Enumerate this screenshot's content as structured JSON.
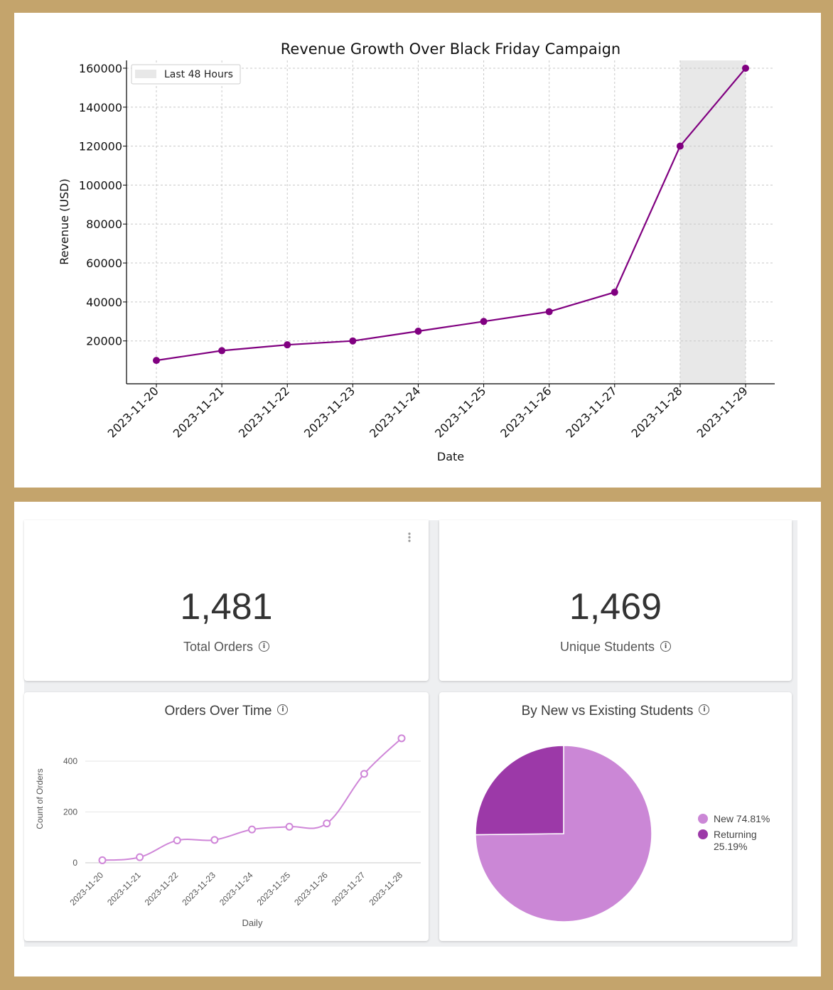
{
  "chart_data": [
    {
      "type": "line",
      "title": "Revenue Growth Over Black Friday Campaign",
      "xlabel": "Date",
      "ylabel": "Revenue (USD)",
      "categories": [
        "2023-11-20",
        "2023-11-21",
        "2023-11-22",
        "2023-11-23",
        "2023-11-24",
        "2023-11-25",
        "2023-11-26",
        "2023-11-27",
        "2023-11-28",
        "2023-11-29"
      ],
      "values": [
        10000,
        15000,
        18000,
        20000,
        25000,
        30000,
        35000,
        45000,
        120000,
        160000
      ],
      "ylim": [
        -2000,
        164000
      ],
      "yticks": [
        20000,
        40000,
        60000,
        80000,
        100000,
        120000,
        140000,
        160000
      ],
      "grid": true,
      "legend": "top-left",
      "shaded_region": {
        "label": "Last 48 Hours",
        "from": "2023-11-28",
        "to": "2023-11-29"
      },
      "color": "#800080",
      "shade_color": "#e8e8e8"
    },
    {
      "type": "line",
      "title": "Orders Over Time",
      "xlabel": "Daily",
      "ylabel": "Count of Orders",
      "categories": [
        "2023-11-20",
        "2023-11-21",
        "2023-11-22",
        "2023-11-23",
        "2023-11-24",
        "2023-11-25",
        "2023-11-26",
        "2023-11-27",
        "2023-11-28"
      ],
      "values": [
        10,
        22,
        88,
        90,
        131,
        142,
        155,
        350,
        490
      ],
      "ylim": [
        0,
        500
      ],
      "yticks": [
        0,
        200,
        400
      ],
      "grid": true,
      "color": "#cf86d8"
    },
    {
      "type": "pie",
      "title": "By New vs Existing Students",
      "slices": [
        {
          "label": "New",
          "value": 74.81,
          "label_text": "New 74.81%",
          "color": "#cb87d6"
        },
        {
          "label": "Returning",
          "value": 25.19,
          "label_text_1": "Returning",
          "label_text_2": "25.19%",
          "color": "#9c39a8"
        }
      ],
      "legend": "right"
    }
  ],
  "kpis": {
    "total_orders": {
      "value": "1,481",
      "label": "Total Orders"
    },
    "unique_students": {
      "value": "1,469",
      "label": "Unique Students"
    }
  },
  "icons": {
    "info": "info-icon",
    "menu": "more-vert-icon"
  }
}
